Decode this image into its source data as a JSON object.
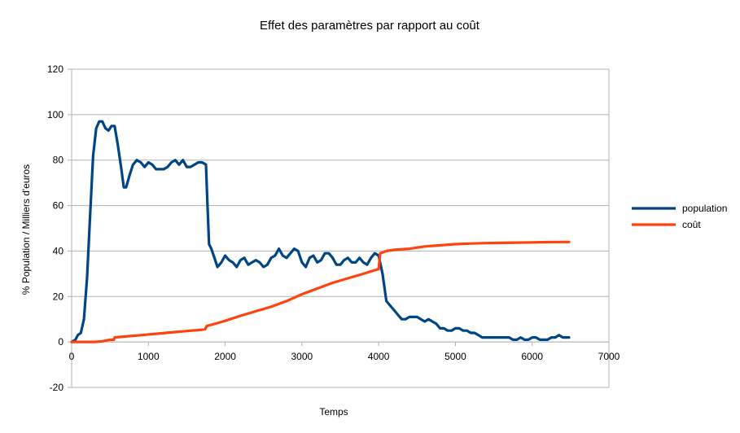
{
  "chart_data": {
    "type": "line",
    "title": "Effet des paramètres par rapport au coût",
    "xlabel": "Temps",
    "ylabel": "% Population / Milliers d'euros",
    "xlim": [
      0,
      7000
    ],
    "ylim": [
      -20,
      120
    ],
    "x_ticks": [
      "0",
      "1000",
      "2000",
      "3000",
      "4000",
      "5000",
      "6000",
      "7000"
    ],
    "y_ticks": [
      "-20",
      "0",
      "20",
      "40",
      "60",
      "80",
      "100",
      "120"
    ],
    "grid": "horizontal",
    "legend_position": "right",
    "series": [
      {
        "name": "population",
        "color": "#004586",
        "points": [
          [
            0,
            0
          ],
          [
            50,
            1
          ],
          [
            80,
            3
          ],
          [
            120,
            4
          ],
          [
            160,
            10
          ],
          [
            200,
            28
          ],
          [
            240,
            55
          ],
          [
            280,
            82
          ],
          [
            320,
            94
          ],
          [
            360,
            97
          ],
          [
            400,
            97
          ],
          [
            440,
            94
          ],
          [
            480,
            93
          ],
          [
            520,
            95
          ],
          [
            560,
            95
          ],
          [
            600,
            87
          ],
          [
            640,
            78
          ],
          [
            680,
            68
          ],
          [
            710,
            68
          ],
          [
            760,
            74
          ],
          [
            800,
            78
          ],
          [
            850,
            80
          ],
          [
            900,
            79
          ],
          [
            950,
            77
          ],
          [
            1000,
            79
          ],
          [
            1050,
            78
          ],
          [
            1100,
            76
          ],
          [
            1150,
            76
          ],
          [
            1200,
            76
          ],
          [
            1250,
            77
          ],
          [
            1300,
            79
          ],
          [
            1350,
            80
          ],
          [
            1400,
            78
          ],
          [
            1450,
            80
          ],
          [
            1500,
            77
          ],
          [
            1550,
            77
          ],
          [
            1600,
            78
          ],
          [
            1650,
            79
          ],
          [
            1700,
            79
          ],
          [
            1750,
            78
          ],
          [
            1770,
            60
          ],
          [
            1790,
            43
          ],
          [
            1820,
            41
          ],
          [
            1860,
            37
          ],
          [
            1900,
            33
          ],
          [
            1950,
            35
          ],
          [
            2000,
            38
          ],
          [
            2050,
            36
          ],
          [
            2100,
            35
          ],
          [
            2150,
            33
          ],
          [
            2200,
            36
          ],
          [
            2250,
            37
          ],
          [
            2300,
            34
          ],
          [
            2350,
            35
          ],
          [
            2400,
            36
          ],
          [
            2450,
            35
          ],
          [
            2500,
            33
          ],
          [
            2550,
            34
          ],
          [
            2600,
            37
          ],
          [
            2650,
            38
          ],
          [
            2700,
            41
          ],
          [
            2750,
            38
          ],
          [
            2800,
            37
          ],
          [
            2850,
            39
          ],
          [
            2900,
            41
          ],
          [
            2950,
            40
          ],
          [
            3000,
            35
          ],
          [
            3050,
            33
          ],
          [
            3100,
            37
          ],
          [
            3150,
            38
          ],
          [
            3200,
            35
          ],
          [
            3250,
            36
          ],
          [
            3300,
            39
          ],
          [
            3350,
            39
          ],
          [
            3400,
            37
          ],
          [
            3450,
            34
          ],
          [
            3500,
            34
          ],
          [
            3550,
            36
          ],
          [
            3600,
            37
          ],
          [
            3650,
            35
          ],
          [
            3700,
            35
          ],
          [
            3750,
            37
          ],
          [
            3800,
            35
          ],
          [
            3850,
            34
          ],
          [
            3900,
            37
          ],
          [
            3950,
            39
          ],
          [
            4000,
            38
          ],
          [
            4050,
            30
          ],
          [
            4100,
            18
          ],
          [
            4150,
            16
          ],
          [
            4200,
            14
          ],
          [
            4250,
            12
          ],
          [
            4300,
            10
          ],
          [
            4350,
            10
          ],
          [
            4400,
            11
          ],
          [
            4450,
            11
          ],
          [
            4500,
            11
          ],
          [
            4550,
            10
          ],
          [
            4600,
            9
          ],
          [
            4650,
            10
          ],
          [
            4700,
            9
          ],
          [
            4750,
            8
          ],
          [
            4800,
            6
          ],
          [
            4850,
            6
          ],
          [
            4900,
            5
          ],
          [
            4950,
            5
          ],
          [
            5000,
            6
          ],
          [
            5050,
            6
          ],
          [
            5100,
            5
          ],
          [
            5150,
            5
          ],
          [
            5200,
            4
          ],
          [
            5250,
            4
          ],
          [
            5300,
            3
          ],
          [
            5350,
            2
          ],
          [
            5400,
            2
          ],
          [
            5450,
            2
          ],
          [
            5500,
            2
          ],
          [
            5550,
            2
          ],
          [
            5600,
            2
          ],
          [
            5650,
            2
          ],
          [
            5700,
            2
          ],
          [
            5750,
            1
          ],
          [
            5800,
            1
          ],
          [
            5850,
            2
          ],
          [
            5900,
            1
          ],
          [
            5950,
            1
          ],
          [
            6000,
            2
          ],
          [
            6050,
            2
          ],
          [
            6100,
            1
          ],
          [
            6150,
            1
          ],
          [
            6200,
            1
          ],
          [
            6250,
            2
          ],
          [
            6300,
            2
          ],
          [
            6350,
            3
          ],
          [
            6400,
            2
          ],
          [
            6450,
            2
          ],
          [
            6480,
            2
          ]
        ]
      },
      {
        "name": "coût",
        "color": "#ff420e",
        "points": [
          [
            0,
            0
          ],
          [
            100,
            0
          ],
          [
            200,
            0
          ],
          [
            300,
            0
          ],
          [
            400,
            0.3
          ],
          [
            500,
            1
          ],
          [
            550,
            1
          ],
          [
            560,
            2
          ],
          [
            700,
            2.4
          ],
          [
            900,
            3
          ],
          [
            1100,
            3.6
          ],
          [
            1300,
            4.2
          ],
          [
            1500,
            4.8
          ],
          [
            1700,
            5.4
          ],
          [
            1740,
            5.6
          ],
          [
            1760,
            7
          ],
          [
            1900,
            8.3
          ],
          [
            2000,
            9.3
          ],
          [
            2200,
            11.5
          ],
          [
            2400,
            13.5
          ],
          [
            2600,
            15.5
          ],
          [
            2800,
            18
          ],
          [
            3000,
            21
          ],
          [
            3200,
            23.5
          ],
          [
            3400,
            26
          ],
          [
            3600,
            28
          ],
          [
            3800,
            30
          ],
          [
            3990,
            32
          ],
          [
            4000,
            32
          ],
          [
            4020,
            39
          ],
          [
            4100,
            40
          ],
          [
            4200,
            40.5
          ],
          [
            4400,
            41
          ],
          [
            4600,
            42
          ],
          [
            4800,
            42.5
          ],
          [
            5000,
            43
          ],
          [
            5200,
            43.3
          ],
          [
            5400,
            43.5
          ],
          [
            5600,
            43.6
          ],
          [
            5800,
            43.7
          ],
          [
            6000,
            43.8
          ],
          [
            6200,
            43.9
          ],
          [
            6400,
            44
          ],
          [
            6480,
            44
          ]
        ]
      }
    ]
  }
}
